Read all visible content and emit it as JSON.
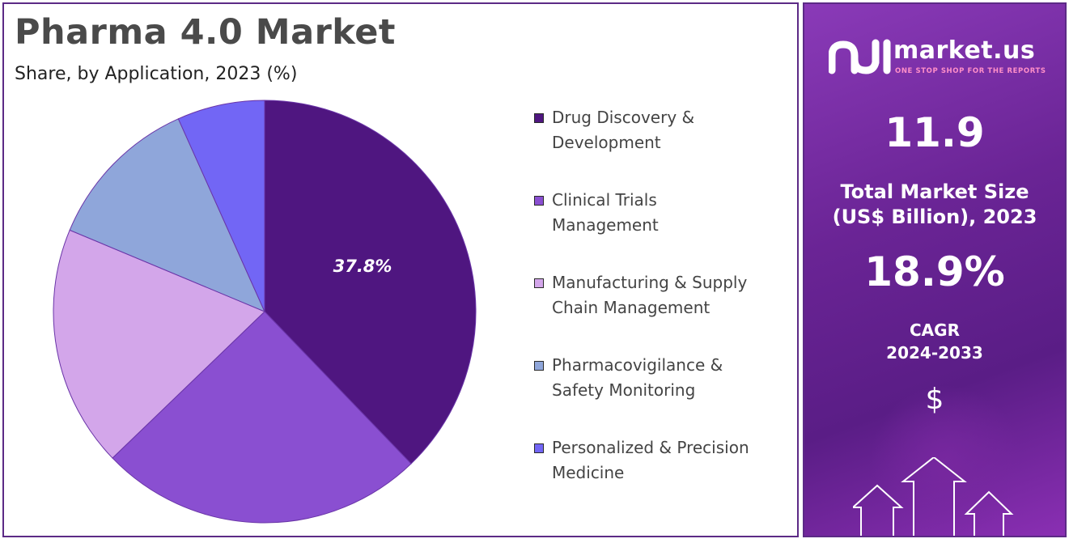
{
  "header": {
    "title": "Pharma 4.0 Market",
    "subtitle": "Share, by Application, 2023 (%)"
  },
  "chart_data": {
    "type": "pie",
    "categories": [
      "Drug Discovery & Development",
      "Clinical Trials Management",
      "Manufacturing & Supply Chain Management",
      "Pharmacovigilance & Safety Monitoring",
      "Personalized & Precision Medicine"
    ],
    "legend_lines": [
      [
        "Drug Discovery &",
        "Development"
      ],
      [
        "Clinical Trials",
        "Management"
      ],
      [
        "Manufacturing & Supply",
        "Chain Management"
      ],
      [
        "Pharmacovigilance &",
        "Safety Monitoring"
      ],
      [
        "Personalized & Precision",
        "Medicine"
      ]
    ],
    "values": [
      37.8,
      25.0,
      18.5,
      12.0,
      6.7
    ],
    "colors": [
      "#4f1680",
      "#8a4fd1",
      "#d3a6ea",
      "#8fa6da",
      "#7266f5"
    ],
    "data_labels": [
      "37.8%",
      "",
      "",
      "",
      ""
    ],
    "legend_position": "right"
  },
  "sidebar": {
    "brand_name": "market.us",
    "brand_tagline": "ONE STOP SHOP FOR THE REPORTS",
    "market_size_value": "11.9",
    "market_size_label_line1": "Total Market Size",
    "market_size_label_line2": "(US$ Billion), 2023",
    "cagr_value": "18.9%",
    "cagr_label_line1": "CAGR",
    "cagr_label_line2": "2024-2033",
    "currency_symbol": "$",
    "logo_icon": "market-us-logo-icon",
    "currency_icon": "dollar-icon",
    "arrows_icon": "growth-arrows-icon"
  }
}
